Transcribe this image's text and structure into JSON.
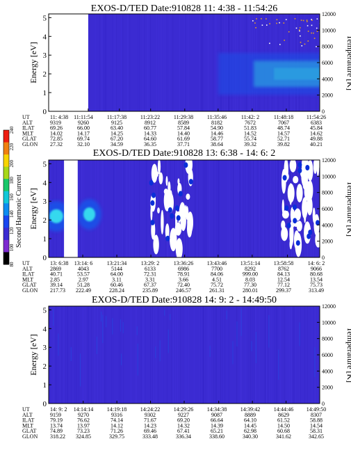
{
  "colors": {
    "background": "#3b2bd2",
    "contour_strong": "#0a2fd8",
    "contour_mid": "#1f4ee6",
    "contour_peak": "#2a9ae0",
    "peak_core": "#35d8ee",
    "saturated": "#ffffff",
    "gap": "#ffffff",
    "frame": "#000000"
  },
  "color_scale": {
    "label": "Second Harmonic Current",
    "ticks": [
      "80",
      "100",
      "120",
      "140",
      "160",
      "180",
      "200",
      "220",
      "240"
    ],
    "colors": [
      "#000000",
      "#7d2ad0",
      "#3b2bd2",
      "#1846f0",
      "#0c8cf0",
      "#10c8d8",
      "#19c86a",
      "#a8d818",
      "#f8d400",
      "#f08010",
      "#ee1c10"
    ]
  },
  "row_labels": [
    "UT",
    "ALT",
    "ILAT",
    "MLT",
    "GLAT",
    "GLON"
  ],
  "chart_data": [
    {
      "type": "heatmap",
      "title": "EXOS-D/TED   Date:910828   11: 4:38 - 11:54:26",
      "ylabel": "Energy [eV]",
      "ylabel_right": "Temperature [K]",
      "ylim": [
        0,
        5.2
      ],
      "y_ticks": [
        "0",
        "1",
        "2",
        "3",
        "4",
        "5"
      ],
      "y2lim": [
        0,
        12000
      ],
      "y2_ticks": [
        "0",
        "2000",
        "4000",
        "6000",
        "8000",
        "10000",
        "12000"
      ],
      "data_gap": [
        "11: 4:38",
        "11:11:54"
      ],
      "features": [
        {
          "kind": "band",
          "t_start": "11:35:46",
          "t_end": "11:54:26",
          "energy_center": 2.0,
          "energy_halfwidth": 0.7,
          "peak_energy": 2.0
        },
        {
          "kind": "scatter-high-energy",
          "t_start": "11:42: 2",
          "t_end": "11:54:26",
          "energy_range": [
            3.2,
            5.0
          ]
        }
      ],
      "columns": [
        {
          "UT": "11: 4:38",
          "ALT": "9319",
          "ILAT": "69.26",
          "MLT": "14.02",
          "GLAT": "72.85",
          "GLON": "27.32"
        },
        {
          "UT": "11:11:54",
          "ALT": "9260",
          "ILAT": "66.00",
          "MLT": "14.17",
          "GLAT": "69.74",
          "GLON": "32.10"
        },
        {
          "UT": "11:17:38",
          "ALT": "9125",
          "ILAT": "63.40",
          "MLT": "14.25",
          "GLAT": "67.20",
          "GLON": "34.59"
        },
        {
          "UT": "11:23:22",
          "ALT": "8912",
          "ILAT": "60.77",
          "MLT": "14.33",
          "GLAT": "64.60",
          "GLON": "36.35"
        },
        {
          "UT": "11:29:38",
          "ALT": "8589",
          "ILAT": "57.84",
          "MLT": "14.40",
          "GLAT": "61.69",
          "GLON": "37.71"
        },
        {
          "UT": "11:35:46",
          "ALT": "8182",
          "ILAT": "54.90",
          "MLT": "14.46",
          "GLAT": "58.77",
          "GLON": "38.64"
        },
        {
          "UT": "11:42: 2",
          "ALT": "7672",
          "ILAT": "51.83",
          "MLT": "14.52",
          "GLAT": "55.74",
          "GLON": "39.32"
        },
        {
          "UT": "11:48:18",
          "ALT": "7067",
          "ILAT": "48.74",
          "MLT": "14.57",
          "GLAT": "52.71",
          "GLON": "39.82"
        },
        {
          "UT": "11:54:26",
          "ALT": "6383",
          "ILAT": "45.84",
          "MLT": "14.62",
          "GLAT": "49.88",
          "GLON": "40.21"
        }
      ]
    },
    {
      "type": "heatmap",
      "title": "EXOS-D/TED   Date:910828   13: 6:38 - 14: 6: 2",
      "ylabel": "Energy [eV]",
      "ylabel_right": "Temperature [K]",
      "ylim": [
        0,
        5.2
      ],
      "y_ticks": [
        "0",
        "1",
        "2",
        "3",
        "4",
        "5"
      ],
      "y2lim": [
        0,
        12000
      ],
      "y2_ticks": [
        "0",
        "2000",
        "4000",
        "6000",
        "8000",
        "10000",
        "12000"
      ],
      "data_gap": [
        "13:10:00",
        "13:13:00"
      ],
      "features": [
        {
          "kind": "peak",
          "t_start": "13: 6:38",
          "t_end": "13:10:00",
          "energy_center": 2.2
        },
        {
          "kind": "peak",
          "t_start": "13:14: 6",
          "t_end": "13:17:00",
          "energy_center": 2.3
        },
        {
          "kind": "saturated-patches",
          "t_start": "13:29: 2",
          "t_end": "13:38:00",
          "energy_range": [
            0.3,
            5.0
          ]
        },
        {
          "kind": "saturated-patches",
          "t_start": "13:58:00",
          "t_end": "14: 6: 2",
          "energy_range": [
            0.5,
            5.1
          ]
        }
      ],
      "columns": [
        {
          "UT": "13: 6:38",
          "ALT": "2869",
          "ILAT": "40.71",
          "MLT": "2.85",
          "GLAT": "39.14",
          "GLON": "217.73"
        },
        {
          "UT": "13:14: 6",
          "ALT": "4043",
          "ILAT": "53.57",
          "MLT": "2.97",
          "GLAT": "51.28",
          "GLON": "222.49"
        },
        {
          "UT": "13:21:34",
          "ALT": "5144",
          "ILAT": "64.00",
          "MLT": "3.11",
          "GLAT": "60.46",
          "GLON": "228.24"
        },
        {
          "UT": "13:29: 2",
          "ALT": "6133",
          "ILAT": "72.31",
          "MLT": "3.31",
          "GLAT": "67.37",
          "GLON": "235.89"
        },
        {
          "UT": "13:36:26",
          "ALT": "6986",
          "ILAT": "78.91",
          "MLT": "3.66",
          "GLAT": "72.40",
          "GLON": "246.57"
        },
        {
          "UT": "13:43:46",
          "ALT": "7700",
          "ILAT": "84.06",
          "MLT": "4.51",
          "GLAT": "75.72",
          "GLON": "261.31"
        },
        {
          "UT": "13:51:14",
          "ALT": "8292",
          "ILAT": "999.00",
          "MLT": "8.03",
          "GLAT": "77.30",
          "GLON": "280.01"
        },
        {
          "UT": "13:58:58",
          "ALT": "8762",
          "ILAT": "84.13",
          "MLT": "12.54",
          "GLAT": "77.12",
          "GLON": "299.37"
        },
        {
          "UT": "14: 6: 2",
          "ALT": "9066",
          "ILAT": "80.68",
          "MLT": "13.54",
          "GLAT": "75.73",
          "GLON": "313.49"
        }
      ]
    },
    {
      "type": "heatmap",
      "title": "EXOS-D/TED   Date:910828   14: 9: 2 - 14:49:50",
      "ylabel": "Energy [eV]",
      "ylabel_right": "Temperature [K]",
      "ylim": [
        0,
        5.2
      ],
      "y_ticks": [
        "0",
        "1",
        "2",
        "3",
        "4",
        "5"
      ],
      "y2lim": [
        0,
        12000
      ],
      "y2_ticks": [
        "0",
        "2000",
        "4000",
        "6000",
        "8000",
        "10000",
        "12000"
      ],
      "data_gap": null,
      "features": [
        {
          "kind": "faint-streaks",
          "t_start": "14: 9: 2",
          "t_end": "14:49:50",
          "energy_range": [
            0,
            5.0
          ]
        }
      ],
      "columns": [
        {
          "UT": "14: 9: 2",
          "ALT": "9159",
          "ILAT": "79.19",
          "MLT": "13.74",
          "GLAT": "74.89",
          "GLON": "318.22"
        },
        {
          "UT": "14:14:14",
          "ALT": "9270",
          "ILAT": "76.62",
          "MLT": "13.97",
          "GLAT": "73.23",
          "GLON": "324.85"
        },
        {
          "UT": "14:19:18",
          "ALT": "9316",
          "ILAT": "74.14",
          "MLT": "14.12",
          "GLAT": "71.26",
          "GLON": "329.75"
        },
        {
          "UT": "14:24:22",
          "ALT": "9302",
          "ILAT": "71.67",
          "MLT": "14.23",
          "GLAT": "69.46",
          "GLON": "333.48"
        },
        {
          "UT": "14:29:26",
          "ALT": "9227",
          "ILAT": "69.20",
          "MLT": "14.32",
          "GLAT": "67.41",
          "GLON": "336.34"
        },
        {
          "UT": "14:34:38",
          "ALT": "9087",
          "ILAT": "66.64",
          "MLT": "14.39",
          "GLAT": "65.21",
          "GLON": "338.60"
        },
        {
          "UT": "14:39:42",
          "ALT": "8889",
          "ILAT": "64.10",
          "MLT": "14.45",
          "GLAT": "62.98",
          "GLON": "340.30"
        },
        {
          "UT": "14:44:46",
          "ALT": "8629",
          "ILAT": "61.52",
          "MLT": "14.50",
          "GLAT": "60.68",
          "GLON": "341.62"
        },
        {
          "UT": "14:49:50",
          "ALT": "8307",
          "ILAT": "58.88",
          "MLT": "14.54",
          "GLAT": "58.31",
          "GLON": "342.65"
        }
      ]
    }
  ]
}
